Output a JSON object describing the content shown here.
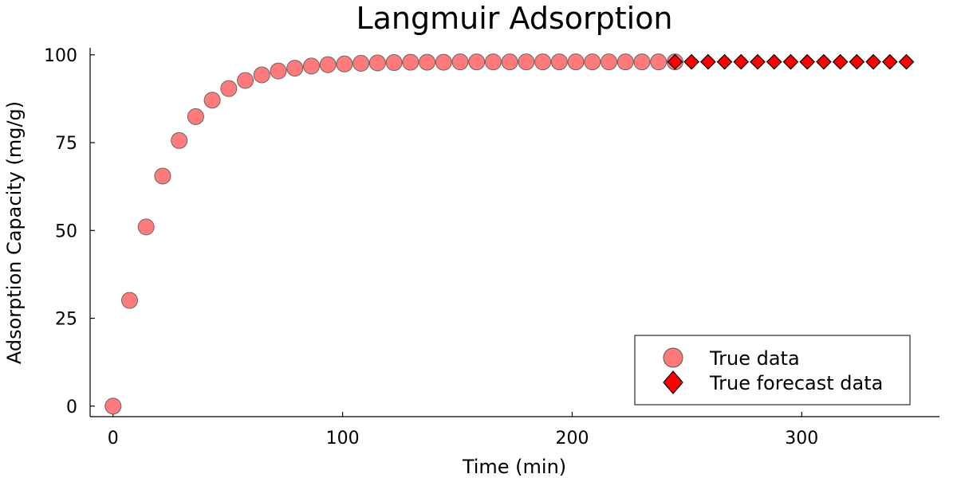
{
  "chart_data": {
    "type": "scatter",
    "title": "Langmuir Adsorption",
    "xlabel": "Time (min)",
    "ylabel": "Adsorption Capacity (mg/g)",
    "xlim": [
      -10,
      360
    ],
    "ylim": [
      -3,
      102
    ],
    "xticks": [
      0,
      100,
      200,
      300
    ],
    "yticks": [
      0,
      25,
      50,
      75,
      100
    ],
    "grid": false,
    "legend_position": "bottom-right",
    "series": [
      {
        "name": "True data",
        "marker": "circle",
        "color": "#ff7b7b",
        "x": [
          0,
          7.2,
          14.4,
          21.6,
          28.8,
          36,
          43.2,
          50.4,
          57.6,
          64.8,
          72,
          79.2,
          86.4,
          93.6,
          100.8,
          108,
          115.2,
          122.4,
          129.6,
          136.8,
          144,
          151.2,
          158.4,
          165.6,
          172.8,
          180,
          187.2,
          194.4,
          201.6,
          208.8,
          216,
          223.2,
          230.4,
          237.6,
          244.8
        ],
        "y": [
          0,
          30.1,
          51,
          65.5,
          75.6,
          82.4,
          87.1,
          90.4,
          92.7,
          94.3,
          95.4,
          96.2,
          96.8,
          97.2,
          97.4,
          97.6,
          97.7,
          97.8,
          97.9,
          97.9,
          97.9,
          98,
          98,
          98,
          98,
          98,
          98,
          98,
          98,
          98,
          98,
          98,
          98,
          98,
          98
        ]
      },
      {
        "name": "True forecast data",
        "marker": "diamond",
        "color": "#ff0000",
        "x": [
          244.8,
          252,
          259.2,
          266.4,
          273.6,
          280.8,
          288,
          295.2,
          302.4,
          309.6,
          316.8,
          324,
          331.2,
          338.4,
          345.6
        ],
        "y": [
          98,
          98,
          98,
          98,
          98,
          98,
          98,
          98,
          98,
          98,
          98,
          98,
          98,
          98,
          98
        ]
      }
    ]
  }
}
